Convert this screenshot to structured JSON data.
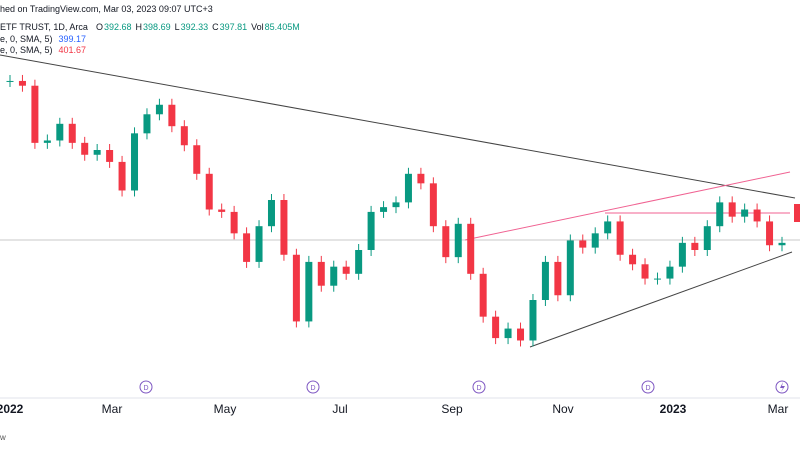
{
  "header": {
    "published": "hed on TradingView.com, Mar 03, 2023 09:07 UTC+3",
    "symbol": "ETF TRUST, 1D, Arca",
    "ohlc": [
      {
        "key": "O",
        "value": "392.68"
      },
      {
        "key": "H",
        "value": "398.69"
      },
      {
        "key": "L",
        "value": "392.33"
      },
      {
        "key": "C",
        "value": "397.81"
      },
      {
        "key": "Vol",
        "value": "85.405M"
      }
    ],
    "indicators": [
      {
        "name": "e, 0, SMA, 5)",
        "value": "399.17"
      },
      {
        "name": "e, 0, SMA, 5)",
        "value": "401.67"
      }
    ]
  },
  "chart_data": {
    "type": "candlestick",
    "x_labels": [
      "2022",
      "Mar",
      "May",
      "Jul",
      "Sep",
      "Nov",
      "2023",
      "Mar"
    ],
    "values": [
      466,
      464,
      440,
      441,
      448,
      440,
      435,
      437,
      432,
      420,
      444,
      452,
      456,
      447,
      439,
      427,
      412,
      411,
      402,
      390,
      405,
      416,
      393,
      365,
      390,
      380,
      388,
      385,
      395,
      411,
      413,
      415,
      427,
      423,
      405,
      392,
      406,
      385,
      367,
      358,
      362,
      357,
      374,
      390,
      376,
      399,
      396,
      402,
      407,
      393,
      389,
      383,
      383,
      388,
      398,
      395,
      405,
      415,
      409,
      412,
      407,
      397,
      398
    ],
    "up_color": "#089981",
    "down_color": "#f23645",
    "ylim": [
      311,
      500
    ]
  },
  "footer": {
    "corner": "w"
  }
}
